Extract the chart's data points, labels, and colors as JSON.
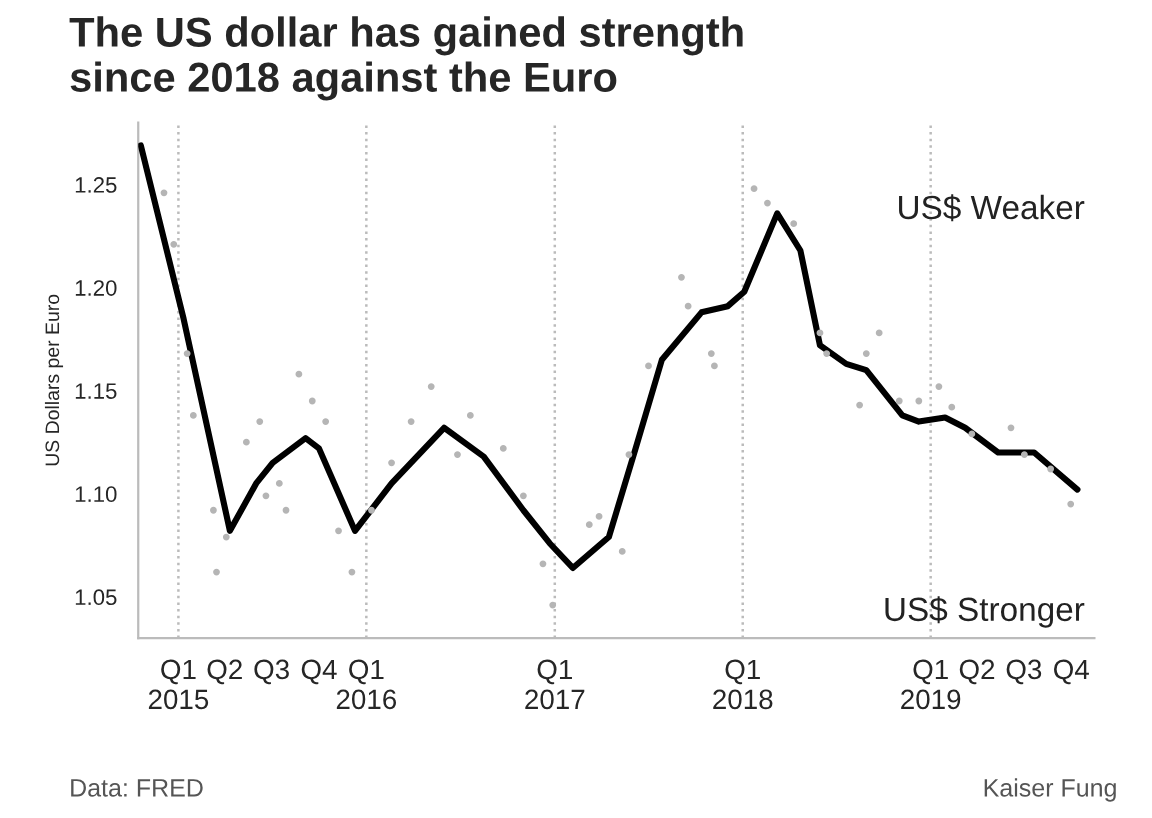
{
  "chart_data": {
    "type": "line",
    "title": "The US dollar has gained strength\nsince 2018 against the Euro",
    "ylabel": "US Dollars per Euro",
    "xlim": [
      "2014-10-15",
      "2019-11-15"
    ],
    "ylim": [
      1.03,
      1.28
    ],
    "yticks": [
      1.05,
      {
        "value": 1.1,
        "label": "1.10"
      },
      1.15,
      {
        "value": 1.2,
        "label": "1.20"
      },
      1.25
    ],
    "xticks": [
      {
        "value": "2015-01-01",
        "label": "Q1\n2015"
      },
      {
        "value": "2015-04-01",
        "label": "Q2"
      },
      {
        "value": "2015-07-01",
        "label": "Q3"
      },
      {
        "value": "2015-10-01",
        "label": "Q4"
      },
      {
        "value": "2016-01-01",
        "label": "Q1\n2016"
      },
      {
        "value": "2017-01-01",
        "label": "Q1\n2017"
      },
      {
        "value": "2018-01-01",
        "label": "Q1\n2018"
      },
      {
        "value": "2019-01-01",
        "label": "Q1\n2019"
      },
      {
        "value": "2019-04-01",
        "label": "Q2"
      },
      {
        "value": "2019-07-01",
        "label": "Q3"
      },
      {
        "value": "2019-10-01",
        "label": "Q4"
      }
    ],
    "grid": false,
    "legend": false,
    "ref_lines": [
      {
        "axis": "x",
        "value": "2015-01-01",
        "color": "#bbbbbb",
        "line_style": "dotted"
      },
      {
        "axis": "x",
        "value": "2016-01-01",
        "color": "#bbbbbb",
        "line_style": "dotted"
      },
      {
        "axis": "x",
        "value": "2017-01-01",
        "color": "#bbbbbb",
        "line_style": "dotted"
      },
      {
        "axis": "x",
        "value": "2018-01-01",
        "color": "#bbbbbb",
        "line_style": "dotted"
      },
      {
        "axis": "x",
        "value": "2019-01-01",
        "color": "#bbbbbb",
        "line_style": "dotted"
      }
    ],
    "series": [
      {
        "type": "scatter",
        "color": "#b5b5b5",
        "marker": "circle",
        "x": [
          "2014-12-04",
          "2014-12-23",
          "2015-01-18",
          "2015-01-30",
          "2015-03-10",
          "2015-03-16",
          "2015-04-04",
          "2015-05-13",
          "2015-06-08",
          "2015-06-20",
          "2015-07-16",
          "2015-07-29",
          "2015-08-23",
          "2015-09-18",
          "2015-10-14",
          "2015-11-08",
          "2015-12-04",
          "2016-01-11",
          "2016-02-19",
          "2016-03-28",
          "2016-05-06",
          "2016-06-26",
          "2016-07-21",
          "2016-09-23",
          "2016-11-01",
          "2016-12-09",
          "2016-12-28",
          "2017-03-09",
          "2017-03-28",
          "2017-05-12",
          "2017-05-25",
          "2017-07-02",
          "2017-09-04",
          "2017-09-17",
          "2017-11-01",
          "2017-11-07",
          "2018-01-23",
          "2018-02-18",
          "2018-04-10",
          "2018-05-31",
          "2018-06-13",
          "2018-08-16",
          "2018-08-29",
          "2018-09-23",
          "2018-11-01",
          "2018-12-09",
          "2019-01-17",
          "2019-02-11",
          "2019-03-22",
          "2019-06-06",
          "2019-07-02",
          "2019-08-22",
          "2019-09-30"
        ],
        "values": [
          1.246,
          1.221,
          1.168,
          1.138,
          1.092,
          1.062,
          1.079,
          1.125,
          1.135,
          1.099,
          1.105,
          1.092,
          1.158,
          1.145,
          1.135,
          1.082,
          1.062,
          1.092,
          1.115,
          1.135,
          1.152,
          1.119,
          1.138,
          1.122,
          1.099,
          1.066,
          1.046,
          1.085,
          1.089,
          1.072,
          1.119,
          1.162,
          1.205,
          1.191,
          1.168,
          1.162,
          1.248,
          1.241,
          1.231,
          1.178,
          1.168,
          1.143,
          1.168,
          1.178,
          1.145,
          1.145,
          1.152,
          1.142,
          1.129,
          1.132,
          1.119,
          1.112,
          1.095
        ]
      },
      {
        "color": "#000000",
        "line_style": "solid",
        "x": [
          "2014-10-20",
          "2015-01-11",
          "2015-04-11",
          "2015-06-01",
          "2015-07-03",
          "2015-09-05",
          "2015-10-01",
          "2015-12-10",
          "2016-02-19",
          "2016-05-31",
          "2016-08-16",
          "2016-11-01",
          "2016-12-22",
          "2017-02-05",
          "2017-04-16",
          "2017-06-07",
          "2017-07-28",
          "2017-10-13",
          "2017-12-03",
          "2018-01-04",
          "2018-03-09",
          "2018-04-23",
          "2018-05-31",
          "2018-07-21",
          "2018-08-29",
          "2018-11-07",
          "2018-12-09",
          "2019-01-29",
          "2019-03-09",
          "2019-05-12",
          "2019-07-21",
          "2019-10-13"
        ],
        "values": [
          1.269,
          1.185,
          1.082,
          1.105,
          1.115,
          1.127,
          1.122,
          1.082,
          1.105,
          1.132,
          1.118,
          1.092,
          1.076,
          1.064,
          1.079,
          1.122,
          1.165,
          1.188,
          1.191,
          1.198,
          1.236,
          1.218,
          1.172,
          1.163,
          1.16,
          1.138,
          1.135,
          1.137,
          1.132,
          1.12,
          1.12,
          1.102
        ]
      }
    ],
    "annotations": [
      "US$ Weaker",
      "US$ Stronger",
      "Data: FRED",
      "Kaiser Fung"
    ]
  }
}
